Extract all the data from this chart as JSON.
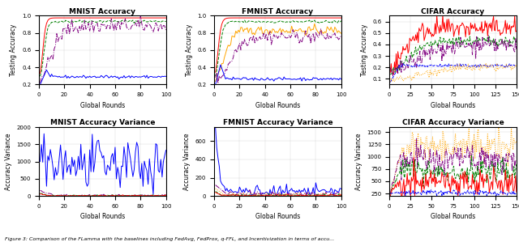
{
  "titles_top": [
    "MNIST Accuracy",
    "FMNIST Accuracy",
    "CIFAR Accuracy"
  ],
  "titles_bot": [
    "MNIST Accuracy Variance",
    "FMNIST Accuracy Variance",
    "CIFAR Accuracy Variance"
  ],
  "xlabel": "Global Rounds",
  "ylabel_top": "Testing Accuracy",
  "ylabel_bot": "Accuracy Variance",
  "mnist_rounds": 100,
  "fmnist_rounds": 100,
  "cifar_rounds": 150,
  "caption": "Figure 3: Comparison of the FLamma with the baselines including FedAvg, FedProx, q-FFL, and Incentivization in terms of accu..."
}
